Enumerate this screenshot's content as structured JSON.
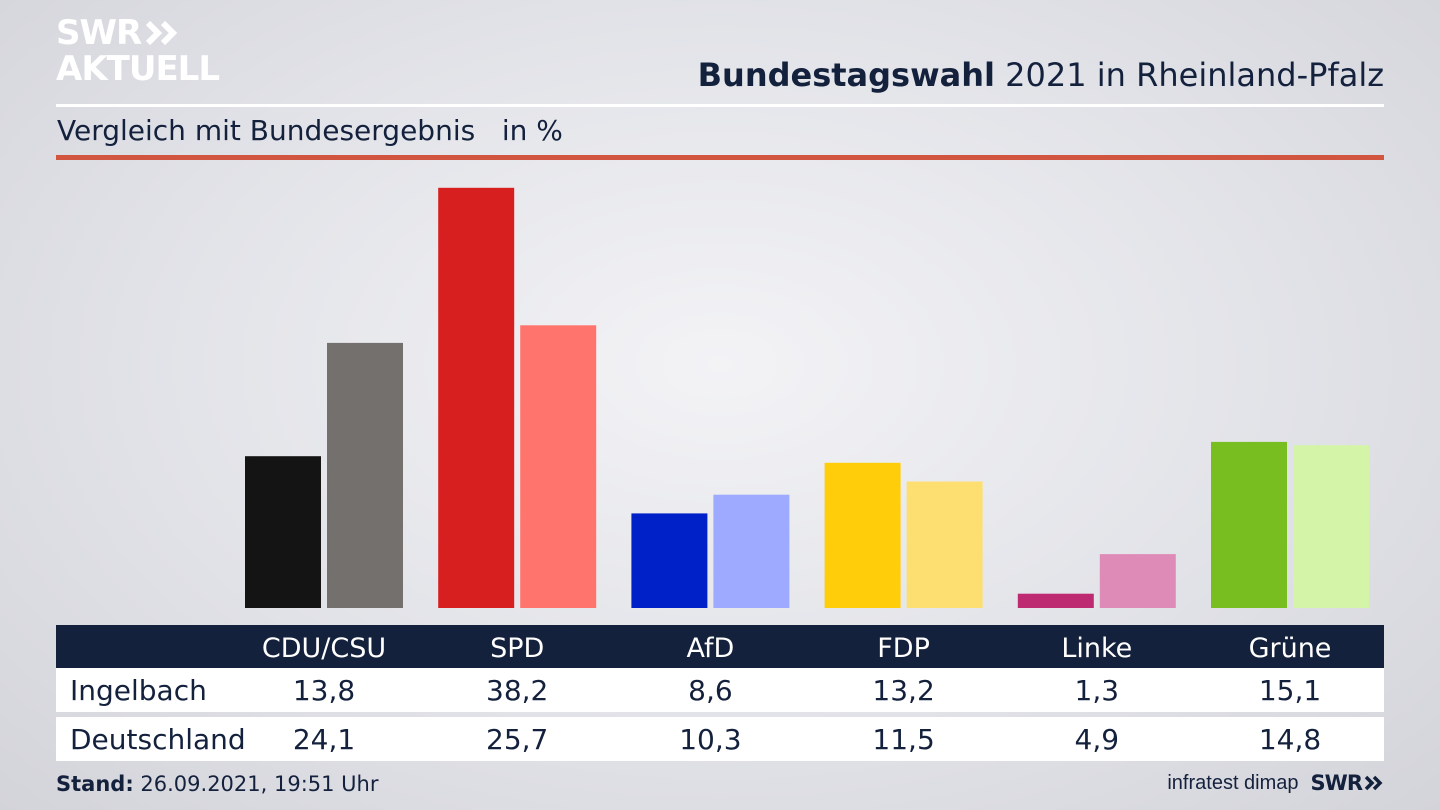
{
  "header": {
    "logo_line1": "SWR",
    "logo_line2": "AKTUELL",
    "title_bold": "Bundestagswahl",
    "title_rest": " 2021 in Rheinland-Pfalz",
    "subtitle": "Vergleich mit Bundesergebnis   in %"
  },
  "chart_data": {
    "type": "bar",
    "categories": [
      "CDU/CSU",
      "SPD",
      "AfD",
      "FDP",
      "Linke",
      "Grüne"
    ],
    "series": [
      {
        "name": "Ingelbach",
        "values": [
          13.8,
          38.2,
          8.6,
          13.2,
          1.3,
          15.1
        ],
        "colors": [
          "#141414",
          "#d71f1f",
          "#0021c8",
          "#ffcd0a",
          "#be2a72",
          "#78be20"
        ]
      },
      {
        "name": "Deutschland",
        "values": [
          24.1,
          25.7,
          10.3,
          11.5,
          4.9,
          14.8
        ],
        "colors": [
          "#73706e",
          "#ff746d",
          "#9eaaff",
          "#fddf71",
          "#df8bb8",
          "#d4f5a8"
        ]
      }
    ],
    "display_values": {
      "Ingelbach": [
        "13,8",
        "38,2",
        "8,6",
        "13,2",
        "1,3",
        "15,1"
      ],
      "Deutschland": [
        "24,1",
        "25,7",
        "10,3",
        "11,5",
        "4,9",
        "14,8"
      ]
    },
    "ylim": [
      0,
      40
    ],
    "grid": false,
    "legend": "table-below"
  },
  "footer": {
    "stand_label": "Stand:",
    "stand_value": " 26.09.2021, 19:51 Uhr",
    "source": "infratest dimap",
    "swr": "SWR"
  }
}
